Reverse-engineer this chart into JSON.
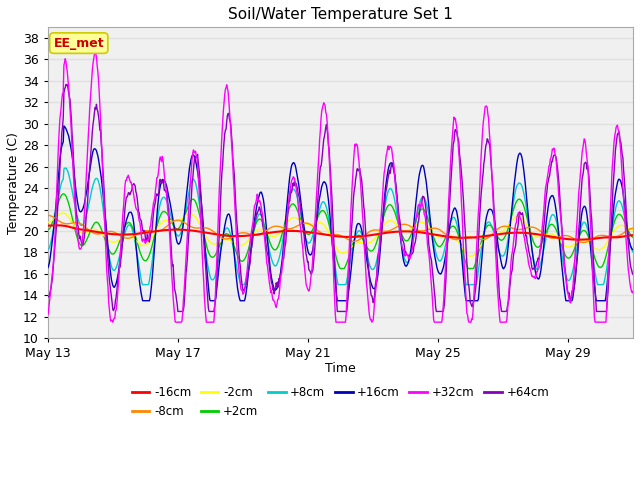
{
  "title": "Soil/Water Temperature Set 1",
  "xlabel": "Time",
  "ylabel": "Temperature (C)",
  "ylim": [
    10,
    39
  ],
  "yticks": [
    10,
    12,
    14,
    16,
    18,
    20,
    22,
    24,
    26,
    28,
    30,
    32,
    34,
    36,
    38
  ],
  "fig_bg_color": "#ffffff",
  "plot_bg_color": "#f0f0f0",
  "grid_color": "#e0e0e0",
  "annotation_text": "EE_met",
  "annotation_color": "#cc0000",
  "annotation_bg": "#ffff99",
  "annotation_border": "#cccc00",
  "series": {
    "-16cm": {
      "color": "#ff0000",
      "zorder": 5
    },
    "-8cm": {
      "color": "#ff8800",
      "zorder": 4
    },
    "-2cm": {
      "color": "#ffff00",
      "zorder": 3
    },
    "+2cm": {
      "color": "#00cc00",
      "zorder": 3
    },
    "+8cm": {
      "color": "#00cccc",
      "zorder": 3
    },
    "+16cm": {
      "color": "#0000bb",
      "zorder": 4
    },
    "+32cm": {
      "color": "#ff00ff",
      "zorder": 6
    },
    "+64cm": {
      "color": "#8800bb",
      "zorder": 5
    }
  },
  "xtick_labels": [
    "May 13",
    "May 17",
    "May 21",
    "May 25",
    "May 29"
  ],
  "xtick_positions": [
    0,
    4,
    8,
    12,
    16
  ],
  "n_days": 18,
  "pts_per_day": 48
}
